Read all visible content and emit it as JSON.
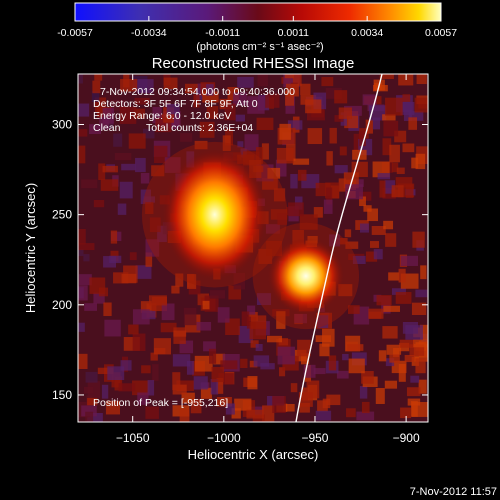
{
  "colorbar": {
    "ticks": [
      "-0.0057",
      "-0.0034",
      "-0.0011",
      "0.0011",
      "0.0034",
      "0.0057"
    ],
    "unit": "(photons cm⁻² s⁻¹ asec⁻²)",
    "range": [
      -0.0057,
      0.0057
    ]
  },
  "title": "Reconstructed RHESSI Image",
  "info": {
    "line1": "7-Nov-2012 09:34:54.000 to 09:40:36.000",
    "line2": "Detectors: 3F 5F 6F 7F 8F 9F, Att 0",
    "line3": "Energy Range: 6.0 - 12.0 keV",
    "line4_left": "Clean",
    "line4_right": "Total counts: 2.36E+04",
    "peak": "Position of Peak = [-955,216]"
  },
  "axes": {
    "xlabel": "Heliocentric X (arcsec)",
    "ylabel": "Heliocentric Y (arcsec)",
    "xrange": [
      -1080,
      -888
    ],
    "yrange": [
      135,
      328
    ],
    "xticks": [
      {
        "value": -1050,
        "label": "−1050"
      },
      {
        "value": -1000,
        "label": "−1000"
      },
      {
        "value": -950,
        "label": "−950"
      },
      {
        "value": -900,
        "label": "−900"
      }
    ],
    "yticks": [
      {
        "value": 150,
        "label": "150"
      },
      {
        "value": 200,
        "label": "200"
      },
      {
        "value": 250,
        "label": "250"
      },
      {
        "value": 300,
        "label": "300"
      }
    ]
  },
  "sources": [
    {
      "x": -1005,
      "y": 250,
      "intensity": 1.0
    },
    {
      "x": -955,
      "y": 216,
      "intensity": 1.0
    }
  ],
  "footer": {
    "timestamp": "7-Nov-2012 11:57"
  }
}
